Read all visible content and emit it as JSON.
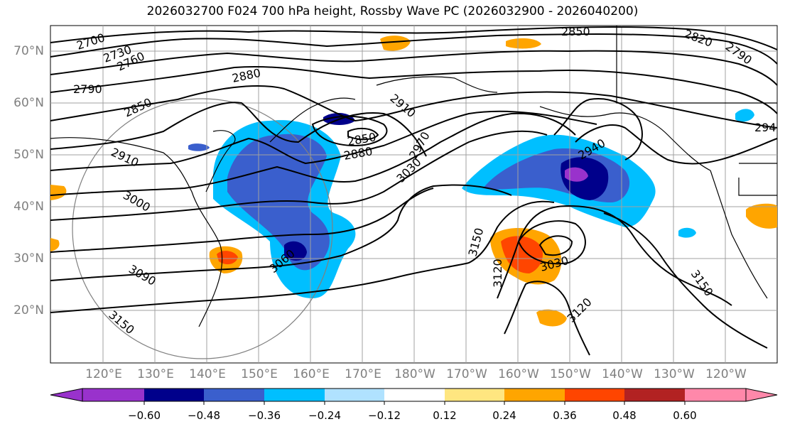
{
  "title": "2026032700 F024 700 hPa height, Rossby Wave PC (2026032900 - 2026040200)",
  "map": {
    "lat_labels": [
      "70°N",
      "60°N",
      "50°N",
      "40°N",
      "30°N",
      "20°N"
    ],
    "lon_labels": [
      "120°E",
      "130°E",
      "140°E",
      "150°E",
      "160°E",
      "170°E",
      "180°W",
      "170°W",
      "160°W",
      "150°W",
      "140°W",
      "130°W",
      "120°W"
    ],
    "contour_labels": [
      "2700",
      "2730",
      "2760",
      "2790",
      "2850",
      "2880",
      "2910",
      "2850",
      "2880",
      "2970",
      "3030",
      "2910",
      "3000",
      "3090",
      "3150",
      "3060",
      "3150",
      "3120",
      "3030",
      "3120",
      "2940",
      "2850",
      "2820",
      "2790",
      "294",
      "3150"
    ],
    "colors": {
      "contour": "#000000",
      "grid": "#a0a0a0",
      "coast": "#000000"
    }
  },
  "colorbar": {
    "ticks": [
      "−0.60",
      "−0.48",
      "−0.36",
      "−0.24",
      "−0.12",
      "0.12",
      "0.24",
      "0.36",
      "0.48",
      "0.60"
    ],
    "colors": [
      "#9932cc",
      "#00008b",
      "#3a5fcd",
      "#00bfff",
      "#b0e2ff",
      "#ffffff",
      "#ffe680",
      "#ffa500",
      "#ff4500",
      "#b22222",
      "#ff88aa"
    ]
  }
}
